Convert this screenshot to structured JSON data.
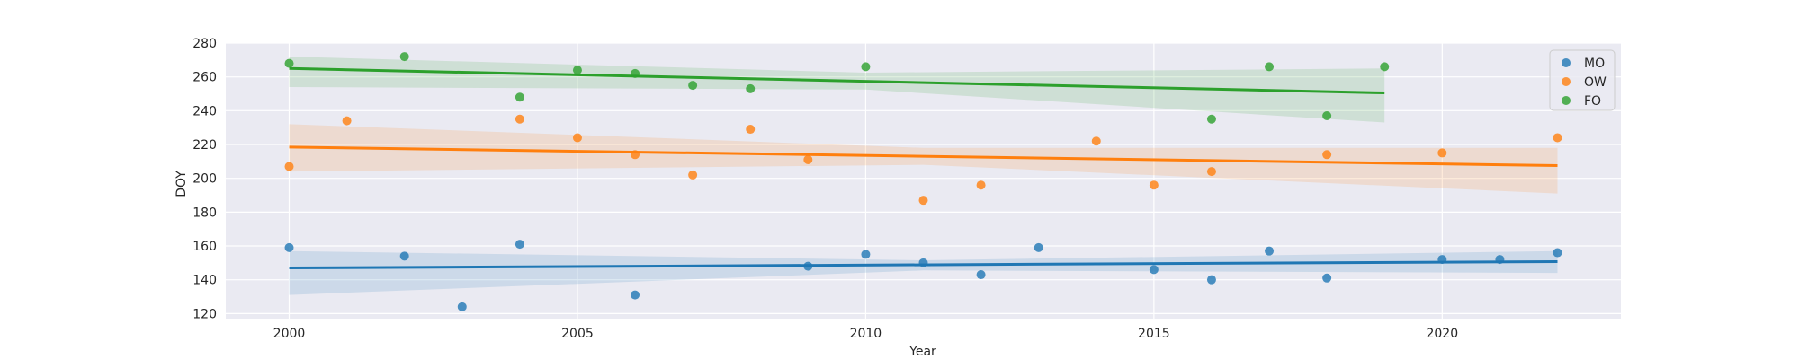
{
  "chart_data": {
    "type": "scatter",
    "title": "",
    "xlabel": "Year",
    "ylabel": "DOY",
    "xlim": [
      1998.9,
      2023.1
    ],
    "ylim": [
      117,
      280
    ],
    "xticks": [
      2000,
      2005,
      2010,
      2015,
      2020
    ],
    "yticks": [
      120,
      140,
      160,
      180,
      200,
      220,
      240,
      260,
      280
    ],
    "grid": true,
    "legend_position": "top-right",
    "series": [
      {
        "name": "MO",
        "color": "#1f77b4",
        "points": [
          [
            2000,
            159
          ],
          [
            2002,
            154
          ],
          [
            2003,
            124
          ],
          [
            2004,
            161
          ],
          [
            2006,
            131
          ],
          [
            2009,
            148
          ],
          [
            2010,
            155
          ],
          [
            2011,
            150
          ],
          [
            2012,
            143
          ],
          [
            2013,
            159
          ],
          [
            2015,
            146
          ],
          [
            2016,
            140
          ],
          [
            2017,
            157
          ],
          [
            2018,
            141
          ],
          [
            2020,
            152
          ],
          [
            2021,
            152
          ],
          [
            2022,
            156
          ]
        ],
        "trend": {
          "x": [
            2000,
            2022
          ],
          "y": [
            147,
            150.7
          ]
        },
        "ci_upper": [
          [
            2000,
            157
          ],
          [
            2011,
            151.5
          ],
          [
            2022,
            157
          ]
        ],
        "ci_lower": [
          [
            2000,
            131
          ],
          [
            2011,
            145.5
          ],
          [
            2022,
            144
          ]
        ]
      },
      {
        "name": "OW",
        "color": "#ff7f0e",
        "points": [
          [
            2000,
            207
          ],
          [
            2001,
            234
          ],
          [
            2004,
            235
          ],
          [
            2005,
            224
          ],
          [
            2006,
            214
          ],
          [
            2007,
            202
          ],
          [
            2008,
            229
          ],
          [
            2009,
            211
          ],
          [
            2011,
            187
          ],
          [
            2012,
            196
          ],
          [
            2014,
            222
          ],
          [
            2015,
            196
          ],
          [
            2016,
            204
          ],
          [
            2018,
            214
          ],
          [
            2020,
            215
          ],
          [
            2022,
            224
          ]
        ],
        "trend": {
          "x": [
            2000,
            2022
          ],
          "y": [
            218.5,
            207.5
          ]
        },
        "ci_upper": [
          [
            2000,
            232
          ],
          [
            2011,
            218
          ],
          [
            2022,
            218
          ]
        ],
        "ci_lower": [
          [
            2000,
            204
          ],
          [
            2011,
            208
          ],
          [
            2022,
            191
          ]
        ]
      },
      {
        "name": "FO",
        "color": "#2ca02c",
        "points": [
          [
            2000,
            268
          ],
          [
            2002,
            272
          ],
          [
            2004,
            248
          ],
          [
            2005,
            264
          ],
          [
            2006,
            262
          ],
          [
            2007,
            255
          ],
          [
            2008,
            253
          ],
          [
            2010,
            266
          ],
          [
            2016,
            235
          ],
          [
            2017,
            266
          ],
          [
            2018,
            237
          ],
          [
            2019,
            266
          ]
        ],
        "trend": {
          "x": [
            2000,
            2019
          ],
          "y": [
            265,
            250.5
          ]
        },
        "ci_upper": [
          [
            2000,
            272
          ],
          [
            2010,
            262.5
          ],
          [
            2019,
            265
          ]
        ],
        "ci_lower": [
          [
            2000,
            254
          ],
          [
            2010,
            252.5
          ],
          [
            2019,
            233
          ]
        ]
      }
    ]
  }
}
